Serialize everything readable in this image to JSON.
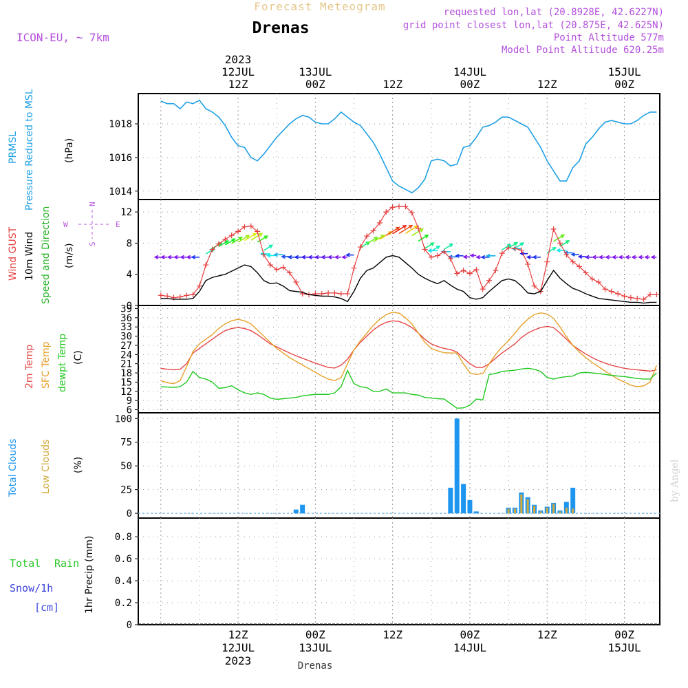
{
  "header": {
    "title": "Forecast Meteogram",
    "location": "Drenas",
    "model": "ICON-EU, ~ 7km",
    "requested": "requested lon,lat (20.8928E, 42.6227N)",
    "gridpoint": "grid point closest lon,lat (20.875E, 42.625N)",
    "altitude": "Point Altitude 577m",
    "model_altitude": "Model Point Altitude 620.25m",
    "credit": "by Angel",
    "footer_location": "Drenas"
  },
  "time_axis": {
    "top": [
      {
        "l1": "2023",
        "l2": "12JUL",
        "l3": "12Z",
        "hour": 12
      },
      {
        "l1": "",
        "l2": "13JUL",
        "l3": "00Z",
        "hour": 24
      },
      {
        "l1": "",
        "l2": "",
        "l3": "12Z",
        "hour": 36
      },
      {
        "l1": "",
        "l2": "14JUL",
        "l3": "00Z",
        "hour": 48
      },
      {
        "l1": "",
        "l2": "",
        "l3": "12Z",
        "hour": 60
      },
      {
        "l1": "",
        "l2": "15JUL",
        "l3": "00Z",
        "hour": 72
      }
    ],
    "bottom": [
      {
        "l1": "12Z",
        "l2": "12JUL",
        "l3": "2023",
        "hour": 12
      },
      {
        "l1": "00Z",
        "l2": "13JUL",
        "l3": "",
        "hour": 24
      },
      {
        "l1": "12Z",
        "l2": "",
        "l3": "",
        "hour": 36
      },
      {
        "l1": "00Z",
        "l2": "14JUL",
        "l3": "",
        "hour": 48
      },
      {
        "l1": "12Z",
        "l2": "",
        "l3": "",
        "hour": 60
      },
      {
        "l1": "00Z",
        "l2": "15JUL",
        "l3": "",
        "hour": 72
      }
    ]
  },
  "panels": {
    "pressure": {
      "lab1": "PRMSL",
      "lab2": "Pressure Reduced to MSL",
      "unit": "(hPa)"
    },
    "wind": {
      "gust": "Wind GUST",
      "wind10": "10m Wind",
      "dir": "Speed and Direction",
      "unit": "(m/s)",
      "compass_n": "N",
      "compass_s": "S",
      "compass_w": "W",
      "compass_e": "E"
    },
    "temp": {
      "t2m": "2m Temp",
      "sfc": "SFC Temp",
      "dew": "dewpt Temp",
      "unit": "(C)"
    },
    "cloud": {
      "total": "Total Clouds",
      "low": "Low Clouds",
      "unit": "(%)"
    },
    "precip": {
      "rain1": "Total",
      "rain2": "Rain",
      "snow": "Snow/1h",
      "cm": "[cm]",
      "unit": "1hr Precip (mm)"
    }
  },
  "colors": {
    "pressure": "#1ea0e6",
    "gust": "#e63c3c",
    "wind10": "#000000",
    "t2m": "#e64646",
    "sfc": "#e6a028",
    "dew": "#1ec81e",
    "total_cloud": "#1e96f0",
    "low_cloud": "#d2aa3c",
    "rain": "#28c828",
    "snow": "#3c46dc",
    "purple": "#b450dc"
  },
  "chart_data": [
    {
      "type": "line",
      "name": "pressure",
      "x_unit": "hours from 2023-07-12 00Z",
      "ylim": [
        1013.5,
        1019.8
      ],
      "yticks": [
        1014,
        1016,
        1018
      ],
      "xlim": [
        0,
        77
      ],
      "x": [
        0,
        1,
        2,
        3,
        4,
        5,
        6,
        7,
        8,
        9,
        10,
        11,
        12,
        13,
        14,
        15,
        16,
        17,
        18,
        19,
        20,
        21,
        22,
        23,
        24,
        25,
        26,
        27,
        28,
        29,
        30,
        31,
        32,
        33,
        34,
        35,
        36,
        37,
        38,
        39,
        40,
        41,
        42,
        43,
        44,
        45,
        46,
        47,
        48,
        49,
        50,
        51,
        52,
        53,
        54,
        55,
        56,
        57,
        58,
        59,
        60,
        61,
        62,
        63,
        64,
        65,
        66,
        67,
        68,
        69,
        70,
        71,
        72,
        73,
        74,
        75,
        76,
        77
      ],
      "values": [
        1019.35,
        1019.2,
        1019.2,
        1018.9,
        1019.3,
        1019.2,
        1019.4,
        1018.9,
        1018.7,
        1018.4,
        1017.9,
        1017.2,
        1016.7,
        1016.6,
        1016.0,
        1015.8,
        1016.2,
        1016.7,
        1017.2,
        1017.6,
        1018.0,
        1018.3,
        1018.5,
        1018.4,
        1018.1,
        1018.0,
        1018.0,
        1018.3,
        1018.7,
        1018.4,
        1018.1,
        1017.9,
        1017.4,
        1016.9,
        1016.2,
        1015.4,
        1014.6,
        1014.3,
        1014.1,
        1013.9,
        1014.2,
        1014.7,
        1015.8,
        1015.9,
        1015.8,
        1015.5,
        1015.6,
        1016.6,
        1016.7,
        1017.2,
        1017.8,
        1017.9,
        1018.1,
        1018.4,
        1018.4,
        1018.2,
        1018.0,
        1017.8,
        1017.2,
        1016.6,
        1015.8,
        1015.2,
        1014.6,
        1014.6,
        1015.4,
        1015.8,
        1016.8,
        1017.2,
        1017.7,
        1018.1,
        1018.2,
        1018.1,
        1018.0,
        1018.0,
        1018.2,
        1018.5,
        1018.7,
        1018.7
      ]
    },
    {
      "type": "line",
      "name": "wind",
      "ylim": [
        0,
        13.6
      ],
      "yticks": [
        0,
        4,
        8,
        12
      ],
      "x": [
        0,
        1,
        2,
        3,
        4,
        5,
        6,
        7,
        8,
        9,
        10,
        11,
        12,
        13,
        14,
        15,
        16,
        17,
        18,
        19,
        20,
        21,
        22,
        23,
        24,
        25,
        26,
        27,
        28,
        29,
        30,
        31,
        32,
        33,
        34,
        35,
        36,
        37,
        38,
        39,
        40,
        41,
        42,
        43,
        44,
        45,
        46,
        47,
        48,
        49,
        50,
        51,
        52,
        53,
        54,
        55,
        56,
        57,
        58,
        59,
        60,
        61,
        62,
        63,
        64,
        65,
        66,
        67,
        68,
        69,
        70,
        71,
        72,
        73,
        74,
        75,
        76,
        77
      ],
      "series": [
        {
          "name": "Wind GUST",
          "values": [
            1.3,
            1.2,
            1.0,
            1.1,
            1.3,
            1.4,
            2.5,
            5.2,
            7.2,
            7.9,
            8.5,
            9.0,
            9.5,
            10.1,
            10.2,
            9.5,
            6.5,
            5.2,
            4.6,
            4.9,
            4.2,
            3.0,
            1.5,
            1.4,
            1.5,
            1.5,
            1.6,
            1.6,
            1.5,
            1.5,
            4.8,
            7.5,
            8.9,
            9.6,
            10.6,
            12.0,
            12.6,
            12.7,
            12.7,
            11.9,
            9.9,
            7.2,
            6.2,
            6.4,
            6.9,
            6.0,
            4.1,
            4.5,
            4.1,
            4.6,
            2.1,
            3.2,
            4.5,
            6.7,
            7.4,
            7.3,
            7.1,
            5.3,
            2.5,
            1.8,
            5.6,
            9.8,
            8.0,
            6.5,
            5.6,
            5.0,
            4.2,
            3.4,
            3.0,
            2.1,
            1.8,
            1.5,
            1.2,
            1.0,
            0.9,
            0.8,
            1.4,
            1.4
          ]
        },
        {
          "name": "10m Wind",
          "values": [
            0.9,
            0.9,
            0.8,
            0.8,
            0.8,
            0.9,
            1.8,
            3.2,
            3.6,
            3.8,
            4.0,
            4.4,
            4.8,
            5.2,
            5.0,
            4.2,
            3.2,
            2.8,
            2.9,
            2.5,
            1.9,
            1.8,
            1.7,
            1.4,
            1.3,
            1.2,
            1.2,
            1.1,
            0.9,
            0.5,
            1.8,
            3.5,
            4.5,
            4.8,
            5.5,
            6.2,
            6.4,
            6.2,
            5.5,
            4.8,
            4.0,
            3.5,
            3.1,
            2.8,
            3.2,
            2.6,
            2.1,
            1.8,
            1.0,
            0.8,
            1.0,
            1.8,
            2.5,
            3.2,
            3.4,
            3.2,
            2.5,
            1.6,
            1.5,
            1.8,
            3.2,
            4.5,
            3.5,
            2.8,
            2.2,
            1.9,
            1.5,
            1.2,
            0.9,
            0.8,
            0.7,
            0.6,
            0.5,
            0.4,
            0.4,
            0.3,
            0.4,
            0.4
          ]
        }
      ]
    },
    {
      "type": "line",
      "name": "temperature",
      "ylim": [
        5,
        40
      ],
      "yticks": [
        6,
        9,
        12,
        15,
        18,
        21,
        24,
        27,
        30,
        33,
        36,
        39
      ],
      "x": [
        0,
        1,
        2,
        3,
        4,
        5,
        6,
        7,
        8,
        9,
        10,
        11,
        12,
        13,
        14,
        15,
        16,
        17,
        18,
        19,
        20,
        21,
        22,
        23,
        24,
        25,
        26,
        27,
        28,
        29,
        30,
        31,
        32,
        33,
        34,
        35,
        36,
        37,
        38,
        39,
        40,
        41,
        42,
        43,
        44,
        45,
        46,
        47,
        48,
        49,
        50,
        51,
        52,
        53,
        54,
        55,
        56,
        57,
        58,
        59,
        60,
        61,
        62,
        63,
        64,
        65,
        66,
        67,
        68,
        69,
        70,
        71,
        72,
        73,
        74,
        75,
        76,
        77
      ],
      "series": [
        {
          "name": "2m Temp",
          "values": [
            19.5,
            19.2,
            19.0,
            19.2,
            21.0,
            24.5,
            26.0,
            27.5,
            29.0,
            30.5,
            31.8,
            32.5,
            32.8,
            32.5,
            31.8,
            30.5,
            29.0,
            27.5,
            26.5,
            25.5,
            24.5,
            23.6,
            22.8,
            22.0,
            21.2,
            20.5,
            19.8,
            19.6,
            20.5,
            22.5,
            25.5,
            28.0,
            30.0,
            32.0,
            33.5,
            34.5,
            35.0,
            34.8,
            34.0,
            32.8,
            31.0,
            29.0,
            27.5,
            26.6,
            26.0,
            25.6,
            24.8,
            22.8,
            21.0,
            19.8,
            19.8,
            21.0,
            22.8,
            24.5,
            26.0,
            27.5,
            29.5,
            31.0,
            32.0,
            32.8,
            33.2,
            32.8,
            31.0,
            29.0,
            27.0,
            25.5,
            24.2,
            23.0,
            22.0,
            21.2,
            20.5,
            20.0,
            19.5,
            19.2,
            19.0,
            18.8,
            18.6,
            19.0
          ]
        },
        {
          "name": "SFC Temp",
          "values": [
            15.5,
            14.8,
            14.5,
            15.5,
            20.0,
            25.0,
            27.5,
            29.0,
            30.5,
            32.5,
            34.0,
            35.0,
            35.5,
            35.0,
            34.0,
            32.0,
            30.0,
            28.0,
            26.0,
            24.5,
            23.0,
            21.8,
            20.6,
            19.4,
            18.2,
            17.0,
            16.0,
            15.5,
            16.5,
            21.0,
            25.5,
            28.5,
            31.0,
            33.5,
            35.5,
            37.0,
            37.8,
            37.5,
            36.0,
            34.0,
            31.0,
            28.0,
            26.0,
            25.2,
            24.6,
            24.5,
            24.5,
            21.0,
            18.0,
            17.5,
            17.8,
            21.0,
            24.0,
            26.5,
            28.5,
            31.0,
            33.5,
            35.5,
            37.0,
            37.6,
            37.2,
            35.8,
            33.0,
            29.8,
            27.0,
            24.8,
            23.0,
            21.4,
            20.0,
            18.6,
            17.3,
            16.0,
            15.0,
            14.0,
            13.5,
            13.8,
            15.0,
            20.5
          ]
        },
        {
          "name": "dewpt Temp",
          "values": [
            13.5,
            13.4,
            13.3,
            13.5,
            15.0,
            18.5,
            16.5,
            16.0,
            15.0,
            13.0,
            13.2,
            13.8,
            12.5,
            11.5,
            11.0,
            11.5,
            11.0,
            9.8,
            9.4,
            9.6,
            9.8,
            10.0,
            10.5,
            10.8,
            11.0,
            11.0,
            11.0,
            11.5,
            13.5,
            18.8,
            14.5,
            13.5,
            13.2,
            12.0,
            12.0,
            12.8,
            11.5,
            11.5,
            11.5,
            11.0,
            10.8,
            10.0,
            9.8,
            9.6,
            9.5,
            8.0,
            6.5,
            6.6,
            7.5,
            9.5,
            9.2,
            17.5,
            17.8,
            18.5,
            18.7,
            18.9,
            19.3,
            19.5,
            19.2,
            18.5,
            16.5,
            16.0,
            16.5,
            16.8,
            17.0,
            18.0,
            18.2,
            18.0,
            17.8,
            17.5,
            17.2,
            17.0,
            16.8,
            16.5,
            16.2,
            16.0,
            16.0,
            18.0
          ]
        }
      ]
    },
    {
      "type": "bar",
      "name": "clouds",
      "ylim": [
        -5,
        106
      ],
      "yticks": [
        0,
        25,
        50,
        75,
        100
      ],
      "x": [
        21,
        22,
        45,
        46,
        47,
        48,
        49,
        54,
        55,
        56,
        57,
        58,
        59,
        60,
        61,
        62,
        63,
        64
      ],
      "series": [
        {
          "name": "Total Clouds",
          "values": [
            4,
            9,
            27,
            100,
            31,
            14,
            2,
            6,
            6,
            22,
            17,
            9,
            3,
            7,
            11,
            3,
            12,
            27
          ]
        },
        {
          "name": "Low Clouds",
          "values": [
            0,
            0,
            0,
            0,
            0,
            0,
            0,
            5,
            5,
            20,
            15,
            8,
            2,
            6,
            10,
            2,
            6,
            5
          ]
        }
      ]
    },
    {
      "type": "bar",
      "name": "precipitation",
      "ylim": [
        0,
        0.97
      ],
      "yticks": [
        0,
        0.2,
        0.4,
        0.6,
        0.8
      ],
      "yticklabels": [
        "0",
        "0.2",
        "0.4",
        "0.6",
        "0.8"
      ],
      "series": [
        {
          "name": "Rain",
          "values": []
        },
        {
          "name": "Snow/1h",
          "values": []
        }
      ]
    }
  ]
}
